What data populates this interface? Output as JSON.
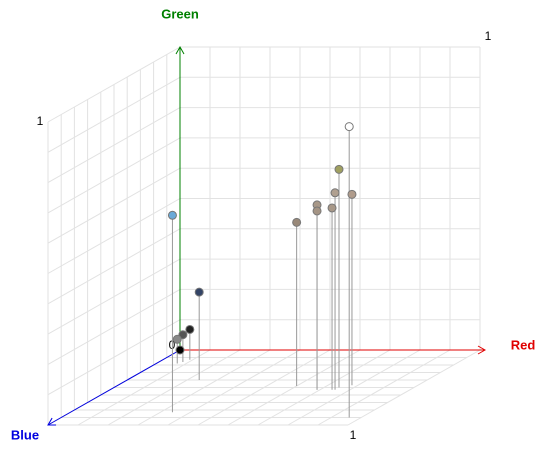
{
  "chart_data": {
    "type": "scatter3d",
    "x_label": "Red",
    "y_label": "Green",
    "z_label": "Blue",
    "xlim": [
      0,
      1
    ],
    "ylim": [
      0,
      1
    ],
    "zlim": [
      0,
      1
    ],
    "xticks": [
      0,
      1
    ],
    "yticks": [
      1
    ],
    "zticks": [
      1
    ],
    "grid": true,
    "axis_colors": {
      "x": "#e00000",
      "y": "#008000",
      "z": "#0000e0"
    },
    "x": [
      0.96,
      0.75,
      0.75,
      0.78,
      0.69,
      0.69,
      0.74,
      0.6,
      0.34,
      0.24,
      0.09,
      0.08,
      0.07,
      0
    ],
    "y": [
      0.96,
      0.72,
      0.65,
      0.63,
      0.61,
      0.59,
      0.6,
      0.54,
      0.65,
      0.29,
      0.1,
      0.09,
      0.08,
      0
    ],
    "z": [
      0.9,
      0.5,
      0.53,
      0.47,
      0.53,
      0.53,
      0.53,
      0.48,
      0.83,
      0.4,
      0.13,
      0.16,
      0.18,
      0
    ],
    "colors": [
      "#ffffff",
      "#a0a060",
      "#b0a090",
      "#b09c8c",
      "#a89888",
      "#a49484",
      "#a89888",
      "#988878",
      "#6aaad8",
      "#334466",
      "#222222",
      "#555555",
      "#888888",
      "#000000"
    ]
  }
}
